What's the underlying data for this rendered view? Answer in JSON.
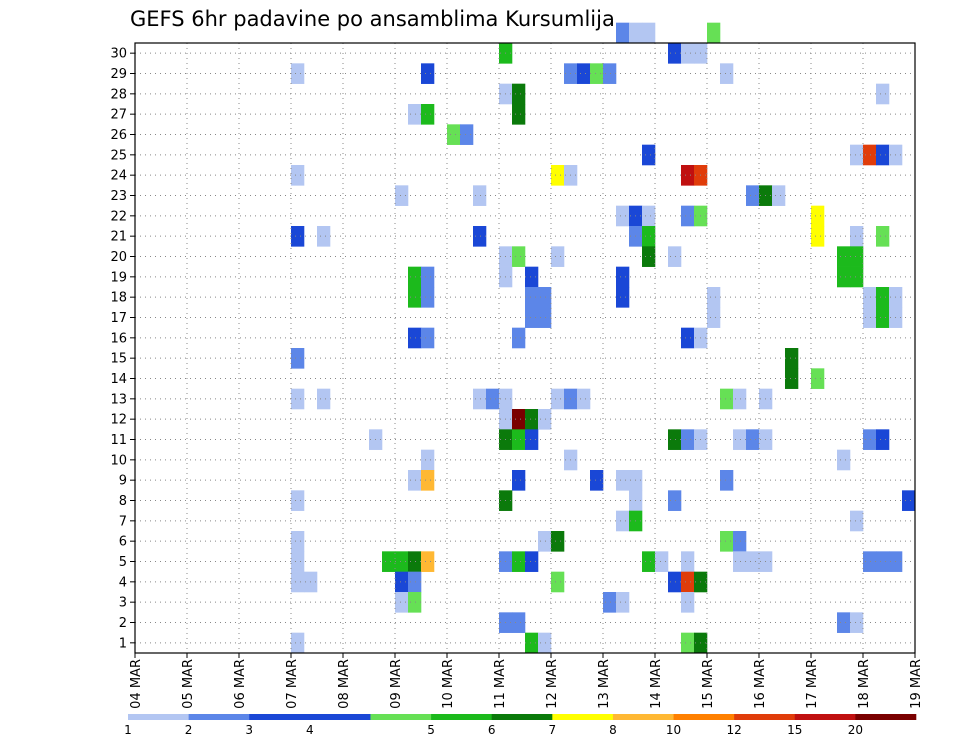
{
  "chart_data": {
    "type": "heatmap",
    "title": "GEFS 6hr padavine po ansamblima Kursumlija",
    "xlabel": "",
    "ylabel": "",
    "x_ticks": [
      "04 MAR",
      "05 MAR",
      "06 MAR",
      "07 MAR",
      "08 MAR",
      "09 MAR",
      "10 MAR",
      "11 MAR",
      "12 MAR",
      "13 MAR",
      "14 MAR",
      "15 MAR",
      "16 MAR",
      "17 MAR",
      "18 MAR",
      "19 MAR"
    ],
    "y_ticks": [
      "1",
      "2",
      "3",
      "4",
      "5",
      "6",
      "7",
      "8",
      "9",
      "10",
      "11",
      "12",
      "13",
      "14",
      "15",
      "16",
      "17",
      "18",
      "19",
      "20",
      "21",
      "22",
      "23",
      "24",
      "25",
      "26",
      "27",
      "28",
      "29",
      "30"
    ],
    "x_range": [
      "04 MAR 00Z",
      "19 MAR 00Z"
    ],
    "steps_per_day": 4,
    "y_range": [
      0,
      30
    ],
    "grid": true,
    "colorbar": {
      "levels": [
        "1",
        "2",
        "3",
        "4",
        "5",
        "6",
        "7",
        "8",
        "10",
        "12",
        "15",
        "20"
      ],
      "colors": [
        "#b3c6f2",
        "#5c86e8",
        "#1a47d6",
        "#1a47d6",
        "#66e055",
        "#1cba1c",
        "#0b7a0b",
        "#ffff00",
        "#ffb833",
        "#ff8000",
        "#e03c0a",
        "#c01010",
        "#7a0000"
      ]
    },
    "cells": [
      {
        "m": 30,
        "x": "13 MAR 06Z",
        "lvl": 1
      },
      {
        "m": 30,
        "x": "13 MAR 12Z",
        "lvl": 0
      },
      {
        "m": 30,
        "x": "13 MAR 18Z",
        "lvl": 0
      },
      {
        "m": 30,
        "x": "15 MAR 00Z",
        "lvl": 4
      },
      {
        "m": 29,
        "x": "11 MAR 00Z",
        "lvl": 5
      },
      {
        "m": 29,
        "x": "14 MAR 06Z",
        "lvl": 2
      },
      {
        "m": 29,
        "x": "14 MAR 12Z",
        "lvl": 0
      },
      {
        "m": 29,
        "x": "14 MAR 18Z",
        "lvl": 0
      },
      {
        "m": 28,
        "x": "07 MAR 00Z",
        "lvl": 0
      },
      {
        "m": 28,
        "x": "09 MAR 12Z",
        "lvl": 2
      },
      {
        "m": 28,
        "x": "12 MAR 06Z",
        "lvl": 1
      },
      {
        "m": 28,
        "x": "12 MAR 12Z",
        "lvl": 2
      },
      {
        "m": 28,
        "x": "12 MAR 18Z",
        "lvl": 4
      },
      {
        "m": 28,
        "x": "13 MAR 00Z",
        "lvl": 1
      },
      {
        "m": 28,
        "x": "15 MAR 06Z",
        "lvl": 0
      },
      {
        "m": 27,
        "x": "11 MAR 00Z",
        "lvl": 0
      },
      {
        "m": 27,
        "x": "11 MAR 06Z",
        "lvl": 6
      },
      {
        "m": 27,
        "x": "18 MAR 06Z",
        "lvl": 0
      },
      {
        "m": 26,
        "x": "09 MAR 06Z",
        "lvl": 0
      },
      {
        "m": 26,
        "x": "09 MAR 12Z",
        "lvl": 5
      },
      {
        "m": 26,
        "x": "11 MAR 06Z",
        "lvl": 6
      },
      {
        "m": 25,
        "x": "10 MAR 00Z",
        "lvl": 4
      },
      {
        "m": 25,
        "x": "10 MAR 06Z",
        "lvl": 1
      },
      {
        "m": 24,
        "x": "13 MAR 18Z",
        "lvl": 2
      },
      {
        "m": 24,
        "x": "17 MAR 18Z",
        "lvl": 0
      },
      {
        "m": 24,
        "x": "18 MAR 00Z",
        "lvl": 10
      },
      {
        "m": 24,
        "x": "18 MAR 06Z",
        "lvl": 2
      },
      {
        "m": 24,
        "x": "18 MAR 12Z",
        "lvl": 0
      },
      {
        "m": 23,
        "x": "07 MAR 00Z",
        "lvl": 0
      },
      {
        "m": 23,
        "x": "12 MAR 00Z",
        "lvl": 7
      },
      {
        "m": 23,
        "x": "12 MAR 06Z",
        "lvl": 0
      },
      {
        "m": 23,
        "x": "14 MAR 12Z",
        "lvl": 11
      },
      {
        "m": 23,
        "x": "14 MAR 18Z",
        "lvl": 10
      },
      {
        "m": 22,
        "x": "09 MAR 00Z",
        "lvl": 0
      },
      {
        "m": 22,
        "x": "10 MAR 12Z",
        "lvl": 0
      },
      {
        "m": 22,
        "x": "15 MAR 18Z",
        "lvl": 1
      },
      {
        "m": 22,
        "x": "16 MAR 00Z",
        "lvl": 6
      },
      {
        "m": 22,
        "x": "16 MAR 06Z",
        "lvl": 0
      },
      {
        "m": 21,
        "x": "13 MAR 06Z",
        "lvl": 0
      },
      {
        "m": 21,
        "x": "13 MAR 12Z",
        "lvl": 2
      },
      {
        "m": 21,
        "x": "13 MAR 18Z",
        "lvl": 0
      },
      {
        "m": 21,
        "x": "14 MAR 12Z",
        "lvl": 1
      },
      {
        "m": 21,
        "x": "14 MAR 18Z",
        "lvl": 4
      },
      {
        "m": 21,
        "x": "17 MAR 00Z",
        "lvl": 7
      },
      {
        "m": 20,
        "x": "07 MAR 00Z",
        "lvl": 2
      },
      {
        "m": 20,
        "x": "07 MAR 12Z",
        "lvl": 0
      },
      {
        "m": 20,
        "x": "10 MAR 12Z",
        "lvl": 2
      },
      {
        "m": 20,
        "x": "13 MAR 12Z",
        "lvl": 1
      },
      {
        "m": 20,
        "x": "13 MAR 18Z",
        "lvl": 5
      },
      {
        "m": 20,
        "x": "17 MAR 00Z",
        "lvl": 7
      },
      {
        "m": 20,
        "x": "17 MAR 18Z",
        "lvl": 0
      },
      {
        "m": 20,
        "x": "18 MAR 06Z",
        "lvl": 4
      },
      {
        "m": 19,
        "x": "11 MAR 00Z",
        "lvl": 0
      },
      {
        "m": 19,
        "x": "11 MAR 06Z",
        "lvl": 4
      },
      {
        "m": 19,
        "x": "12 MAR 00Z",
        "lvl": 0
      },
      {
        "m": 19,
        "x": "13 MAR 18Z",
        "lvl": 6
      },
      {
        "m": 19,
        "x": "14 MAR 06Z",
        "lvl": 0
      },
      {
        "m": 19,
        "x": "17 MAR 12Z",
        "lvl": 5
      },
      {
        "m": 19,
        "x": "17 MAR 18Z",
        "lvl": 5
      },
      {
        "m": 18,
        "x": "11 MAR 00Z",
        "lvl": 0
      },
      {
        "m": 18,
        "x": "11 MAR 12Z",
        "lvl": 2
      },
      {
        "m": 18,
        "x": "13 MAR 06Z",
        "lvl": 2
      },
      {
        "m": 18,
        "x": "09 MAR 06Z",
        "lvl": 5
      },
      {
        "m": 18,
        "x": "09 MAR 12Z",
        "lvl": 1
      },
      {
        "m": 18,
        "x": "17 MAR 12Z",
        "lvl": 5
      },
      {
        "m": 18,
        "x": "17 MAR 18Z",
        "lvl": 5
      },
      {
        "m": 17,
        "x": "09 MAR 06Z",
        "lvl": 5
      },
      {
        "m": 17,
        "x": "09 MAR 12Z",
        "lvl": 1
      },
      {
        "m": 17,
        "x": "11 MAR 12Z",
        "lvl": 1
      },
      {
        "m": 17,
        "x": "11 MAR 18Z",
        "lvl": 1
      },
      {
        "m": 17,
        "x": "13 MAR 06Z",
        "lvl": 2
      },
      {
        "m": 17,
        "x": "15 MAR 00Z",
        "lvl": 0
      },
      {
        "m": 17,
        "x": "18 MAR 00Z",
        "lvl": 0
      },
      {
        "m": 17,
        "x": "18 MAR 06Z",
        "lvl": 5
      },
      {
        "m": 17,
        "x": "18 MAR 12Z",
        "lvl": 0
      },
      {
        "m": 16,
        "x": "11 MAR 12Z",
        "lvl": 1
      },
      {
        "m": 16,
        "x": "11 MAR 18Z",
        "lvl": 1
      },
      {
        "m": 16,
        "x": "15 MAR 00Z",
        "lvl": 0
      },
      {
        "m": 16,
        "x": "18 MAR 00Z",
        "lvl": 0
      },
      {
        "m": 16,
        "x": "18 MAR 06Z",
        "lvl": 5
      },
      {
        "m": 16,
        "x": "18 MAR 12Z",
        "lvl": 0
      },
      {
        "m": 15,
        "x": "09 MAR 06Z",
        "lvl": 2
      },
      {
        "m": 15,
        "x": "09 MAR 12Z",
        "lvl": 1
      },
      {
        "m": 15,
        "x": "11 MAR 06Z",
        "lvl": 1
      },
      {
        "m": 15,
        "x": "14 MAR 12Z",
        "lvl": 2
      },
      {
        "m": 15,
        "x": "14 MAR 18Z",
        "lvl": 0
      },
      {
        "m": 14,
        "x": "07 MAR 00Z",
        "lvl": 1
      },
      {
        "m": 14,
        "x": "16 MAR 12Z",
        "lvl": 6
      },
      {
        "m": 13,
        "x": "16 MAR 12Z",
        "lvl": 6
      },
      {
        "m": 13,
        "x": "17 MAR 00Z",
        "lvl": 4
      },
      {
        "m": 12,
        "x": "07 MAR 00Z",
        "lvl": 0
      },
      {
        "m": 12,
        "x": "07 MAR 12Z",
        "lvl": 0
      },
      {
        "m": 12,
        "x": "10 MAR 12Z",
        "lvl": 0
      },
      {
        "m": 12,
        "x": "10 MAR 18Z",
        "lvl": 1
      },
      {
        "m": 12,
        "x": "11 MAR 00Z",
        "lvl": 0
      },
      {
        "m": 12,
        "x": "12 MAR 00Z",
        "lvl": 0
      },
      {
        "m": 12,
        "x": "12 MAR 06Z",
        "lvl": 1
      },
      {
        "m": 12,
        "x": "12 MAR 12Z",
        "lvl": 0
      },
      {
        "m": 12,
        "x": "15 MAR 06Z",
        "lvl": 4
      },
      {
        "m": 12,
        "x": "15 MAR 12Z",
        "lvl": 0
      },
      {
        "m": 12,
        "x": "16 MAR 00Z",
        "lvl": 0
      },
      {
        "m": 11,
        "x": "11 MAR 00Z",
        "lvl": 0
      },
      {
        "m": 11,
        "x": "11 MAR 06Z",
        "lvl": 12
      },
      {
        "m": 11,
        "x": "11 MAR 12Z",
        "lvl": 6
      },
      {
        "m": 11,
        "x": "11 MAR 18Z",
        "lvl": 0
      },
      {
        "m": 10,
        "x": "08 MAR 12Z",
        "lvl": 0
      },
      {
        "m": 10,
        "x": "11 MAR 00Z",
        "lvl": 6
      },
      {
        "m": 10,
        "x": "11 MAR 06Z",
        "lvl": 5
      },
      {
        "m": 10,
        "x": "11 MAR 12Z",
        "lvl": 2
      },
      {
        "m": 10,
        "x": "14 MAR 06Z",
        "lvl": 6
      },
      {
        "m": 10,
        "x": "14 MAR 12Z",
        "lvl": 1
      },
      {
        "m": 10,
        "x": "14 MAR 18Z",
        "lvl": 0
      },
      {
        "m": 10,
        "x": "15 MAR 12Z",
        "lvl": 0
      },
      {
        "m": 10,
        "x": "15 MAR 18Z",
        "lvl": 1
      },
      {
        "m": 10,
        "x": "16 MAR 00Z",
        "lvl": 0
      },
      {
        "m": 10,
        "x": "18 MAR 00Z",
        "lvl": 1
      },
      {
        "m": 10,
        "x": "18 MAR 06Z",
        "lvl": 2
      },
      {
        "m": 9,
        "x": "09 MAR 12Z",
        "lvl": 0
      },
      {
        "m": 9,
        "x": "12 MAR 06Z",
        "lvl": 0
      },
      {
        "m": 9,
        "x": "17 MAR 12Z",
        "lvl": 0
      },
      {
        "m": 8,
        "x": "09 MAR 06Z",
        "lvl": 0
      },
      {
        "m": 8,
        "x": "09 MAR 12Z",
        "lvl": 8
      },
      {
        "m": 8,
        "x": "11 MAR 06Z",
        "lvl": 2
      },
      {
        "m": 8,
        "x": "12 MAR 18Z",
        "lvl": 2
      },
      {
        "m": 8,
        "x": "13 MAR 06Z",
        "lvl": 0
      },
      {
        "m": 8,
        "x": "13 MAR 12Z",
        "lvl": 0
      },
      {
        "m": 8,
        "x": "15 MAR 06Z",
        "lvl": 1
      },
      {
        "m": 7,
        "x": "07 MAR 00Z",
        "lvl": 0
      },
      {
        "m": 7,
        "x": "11 MAR 00Z",
        "lvl": 6
      },
      {
        "m": 7,
        "x": "13 MAR 12Z",
        "lvl": 0
      },
      {
        "m": 7,
        "x": "14 MAR 06Z",
        "lvl": 1
      },
      {
        "m": 7,
        "x": "18 MAR 18Z",
        "lvl": 2
      },
      {
        "m": 6,
        "x": "13 MAR 06Z",
        "lvl": 0
      },
      {
        "m": 6,
        "x": "13 MAR 12Z",
        "lvl": 5
      },
      {
        "m": 6,
        "x": "17 MAR 18Z",
        "lvl": 0
      },
      {
        "m": 5,
        "x": "07 MAR 00Z",
        "lvl": 0
      },
      {
        "m": 5,
        "x": "11 MAR 18Z",
        "lvl": 0
      },
      {
        "m": 5,
        "x": "12 MAR 00Z",
        "lvl": 6
      },
      {
        "m": 5,
        "x": "15 MAR 06Z",
        "lvl": 4
      },
      {
        "m": 5,
        "x": "15 MAR 12Z",
        "lvl": 1
      },
      {
        "m": 4,
        "x": "07 MAR 00Z",
        "lvl": 0
      },
      {
        "m": 4,
        "x": "08 MAR 18Z",
        "lvl": 5
      },
      {
        "m": 4,
        "x": "09 MAR 00Z",
        "lvl": 5
      },
      {
        "m": 4,
        "x": "09 MAR 06Z",
        "lvl": 6
      },
      {
        "m": 4,
        "x": "09 MAR 12Z",
        "lvl": 8
      },
      {
        "m": 4,
        "x": "11 MAR 00Z",
        "lvl": 1
      },
      {
        "m": 4,
        "x": "11 MAR 06Z",
        "lvl": 5
      },
      {
        "m": 4,
        "x": "11 MAR 12Z",
        "lvl": 2
      },
      {
        "m": 4,
        "x": "13 MAR 18Z",
        "lvl": 5
      },
      {
        "m": 4,
        "x": "14 MAR 00Z",
        "lvl": 0
      },
      {
        "m": 4,
        "x": "14 MAR 12Z",
        "lvl": 0
      },
      {
        "m": 4,
        "x": "15 MAR 12Z",
        "lvl": 0
      },
      {
        "m": 4,
        "x": "15 MAR 18Z",
        "lvl": 0
      },
      {
        "m": 4,
        "x": "16 MAR 00Z",
        "lvl": 0
      },
      {
        "m": 4,
        "x": "18 MAR 00Z",
        "lvl": 1
      },
      {
        "m": 4,
        "x": "18 MAR 06Z",
        "lvl": 1
      },
      {
        "m": 4,
        "x": "18 MAR 12Z",
        "lvl": 1
      },
      {
        "m": 3,
        "x": "07 MAR 00Z",
        "lvl": 0
      },
      {
        "m": 3,
        "x": "07 MAR 06Z",
        "lvl": 0
      },
      {
        "m": 3,
        "x": "09 MAR 00Z",
        "lvl": 2
      },
      {
        "m": 3,
        "x": "09 MAR 06Z",
        "lvl": 1
      },
      {
        "m": 3,
        "x": "12 MAR 00Z",
        "lvl": 4
      },
      {
        "m": 3,
        "x": "14 MAR 06Z",
        "lvl": 2
      },
      {
        "m": 3,
        "x": "14 MAR 12Z",
        "lvl": 10
      },
      {
        "m": 3,
        "x": "14 MAR 18Z",
        "lvl": 6
      },
      {
        "m": 2,
        "x": "09 MAR 00Z",
        "lvl": 0
      },
      {
        "m": 2,
        "x": "09 MAR 06Z",
        "lvl": 4
      },
      {
        "m": 2,
        "x": "13 MAR 00Z",
        "lvl": 1
      },
      {
        "m": 2,
        "x": "13 MAR 06Z",
        "lvl": 0
      },
      {
        "m": 2,
        "x": "14 MAR 12Z",
        "lvl": 0
      },
      {
        "m": 1,
        "x": "11 MAR 00Z",
        "lvl": 1
      },
      {
        "m": 1,
        "x": "11 MAR 06Z",
        "lvl": 1
      },
      {
        "m": 1,
        "x": "17 MAR 12Z",
        "lvl": 1
      },
      {
        "m": 1,
        "x": "17 MAR 18Z",
        "lvl": 0
      },
      {
        "m": 0,
        "x": "07 MAR 00Z",
        "lvl": 0
      },
      {
        "m": 0,
        "x": "11 MAR 12Z",
        "lvl": 5
      },
      {
        "m": 0,
        "x": "11 MAR 18Z",
        "lvl": 0
      },
      {
        "m": 0,
        "x": "14 MAR 12Z",
        "lvl": 4
      },
      {
        "m": 0,
        "x": "14 MAR 18Z",
        "lvl": 6
      }
    ]
  }
}
